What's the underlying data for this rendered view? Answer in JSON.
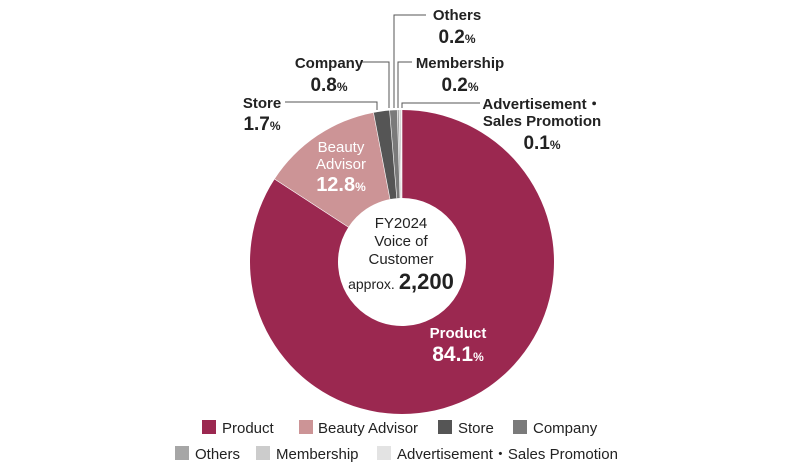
{
  "chart_data": {
    "type": "pie",
    "center_label": {
      "line1": "FY2024",
      "line2": "Voice of",
      "line3": "Customer",
      "prefix": "approx.",
      "value": "2,200"
    },
    "slices": [
      {
        "name": "Product",
        "value": 84.1,
        "color": "#9b2850"
      },
      {
        "name": "Beauty Advisor",
        "value": 12.8,
        "color": "#cc9496"
      },
      {
        "name": "Store",
        "value": 1.7,
        "color": "#555555"
      },
      {
        "name": "Company",
        "value": 0.8,
        "color": "#7a7a7a"
      },
      {
        "name": "Others",
        "value": 0.2,
        "color": "#a6a6a6"
      },
      {
        "name": "Membership",
        "value": 0.2,
        "color": "#cccccc"
      },
      {
        "name": "Advertisement・Sales Promotion",
        "value": 0.1,
        "color": "#e3e3e3"
      }
    ],
    "labels": {
      "product": {
        "name": "Product",
        "value": "84.1",
        "unit": "%"
      },
      "beauty_advisor": {
        "name1": "Beauty",
        "name2": "Advisor",
        "value": "12.8",
        "unit": "%"
      },
      "store": {
        "name": "Store",
        "value": "1.7",
        "unit": "%"
      },
      "company": {
        "name": "Company",
        "value": "0.8",
        "unit": "%"
      },
      "others": {
        "name": "Others",
        "value": "0.2",
        "unit": "%"
      },
      "membership": {
        "name": "Membership",
        "value": "0.2",
        "unit": "%"
      },
      "advertisement": {
        "name1": "Advertisement・",
        "name2": "Sales Promotion",
        "value": "0.1",
        "unit": "%"
      }
    },
    "legend": [
      {
        "name": "Product",
        "color": "#9b2850"
      },
      {
        "name": "Beauty Advisor",
        "color": "#cc9496"
      },
      {
        "name": "Store",
        "color": "#555555"
      },
      {
        "name": "Company",
        "color": "#7a7a7a"
      },
      {
        "name": "Others",
        "color": "#a6a6a6"
      },
      {
        "name": "Membership",
        "color": "#cccccc"
      },
      {
        "name": "Advertisement・Sales Promotion",
        "color": "#e3e3e3"
      }
    ]
  }
}
